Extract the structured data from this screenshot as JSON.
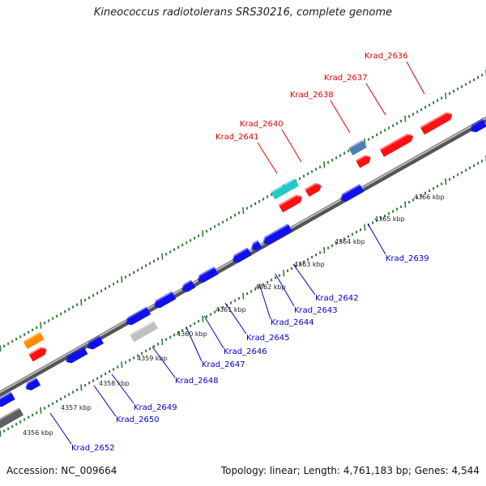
{
  "title": "Kineococcus radiotolerans SRS30216, complete genome",
  "footer": {
    "accession": "Accession: NC_009664",
    "topology": "Topology: linear; Length: 4,761,183 bp; Genes: 4,544"
  },
  "colors": {
    "forward_label": "#e00000",
    "reverse_label": "#0000cc",
    "backbone": "#8a8a8a",
    "tick": "#2e7d32",
    "red_gene": "#ff1010",
    "blue_gene": "#1010ee",
    "cyan_gene": "#20c8c8",
    "steel_gene": "#4a7fb5",
    "orange_gene": "#ff8c00",
    "grey_gene": "#c0c0c0",
    "dark_grey_gene": "#606060"
  },
  "scale_labels": [
    "4356 kbp",
    "4357 kbp",
    "4358 kbp",
    "4359 kbp",
    "4360 kbp",
    "4361 kbp",
    "4362 kbp",
    "4363 kbp",
    "4364 kbp",
    "4365 kbp",
    "4366 kbp"
  ],
  "forward_labels": [
    "Krad_2636",
    "Krad_2637",
    "Krad_2638",
    "Krad_2640",
    "Krad_2641"
  ],
  "reverse_labels": [
    "Krad_2639",
    "Krad_2642",
    "Krad_2643",
    "Krad_2644",
    "Krad_2645",
    "Krad_2646",
    "Krad_2647",
    "Krad_2648",
    "Krad_2649",
    "Krad_2650",
    "Krad_2652"
  ]
}
